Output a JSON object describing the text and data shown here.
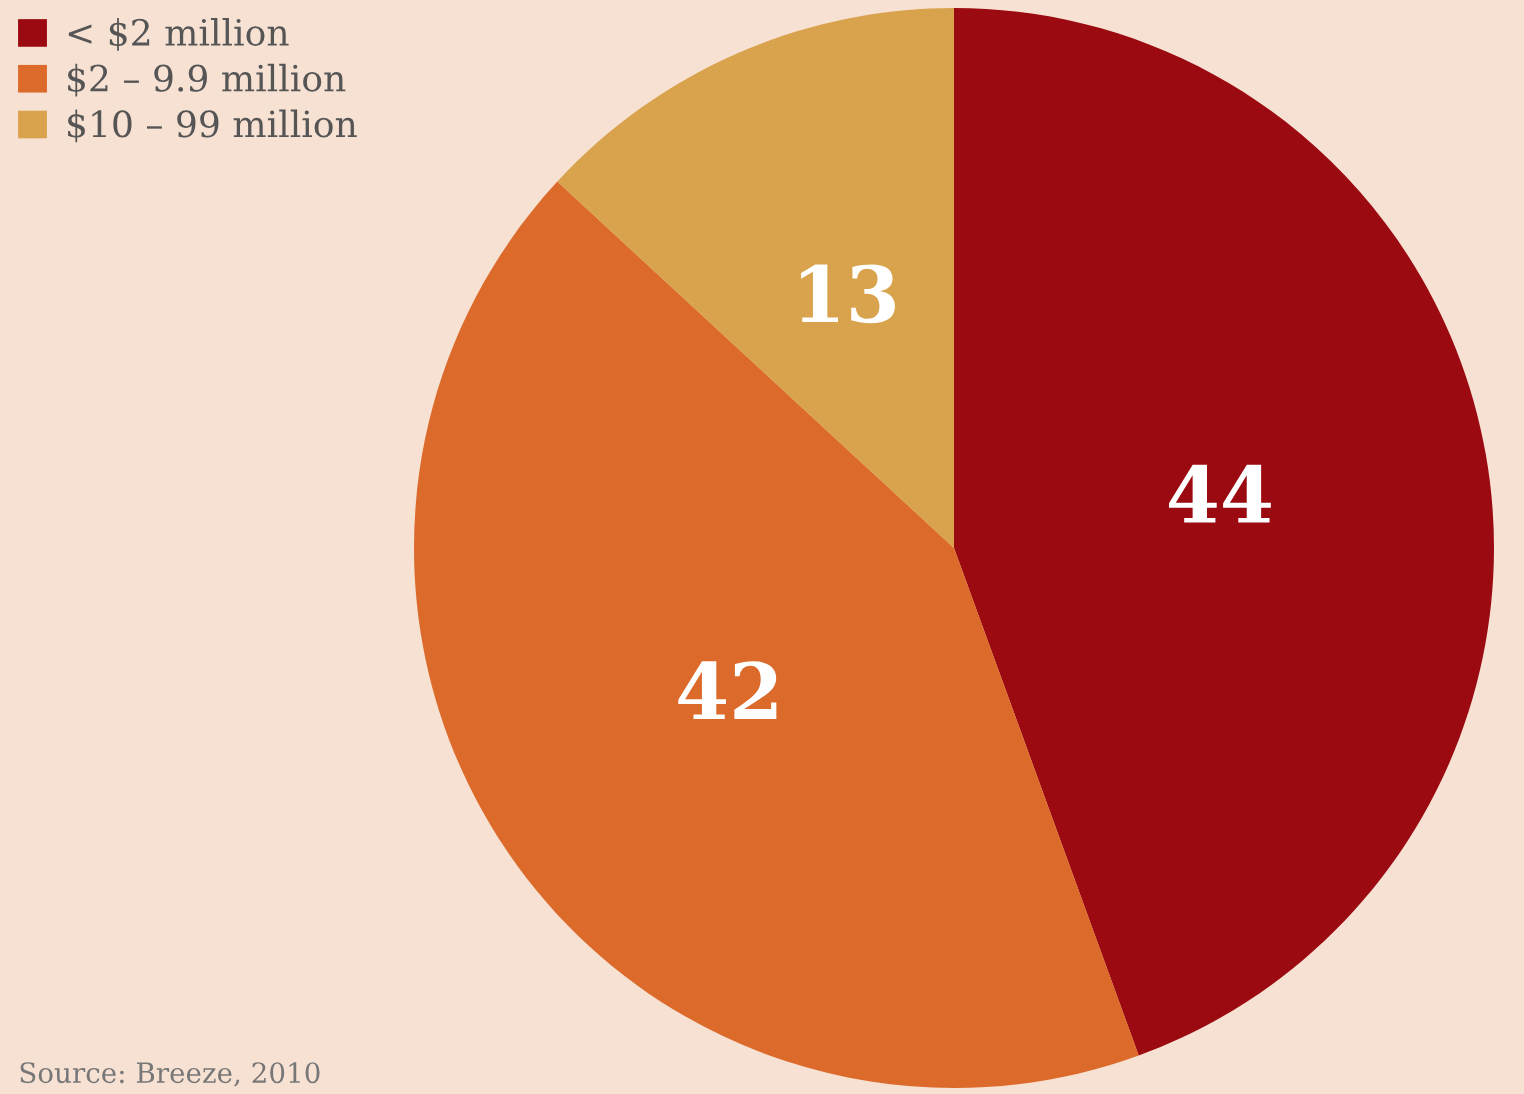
{
  "chart_data": {
    "type": "pie",
    "categories": [
      "< $2 million",
      "$2 – 9.9 million",
      "$10 – 99 million"
    ],
    "values": [
      44,
      42,
      13
    ],
    "colors": [
      "#9b0a10",
      "#dc6a2a",
      "#d9a34e"
    ],
    "data_labels": true,
    "legend": "top left",
    "annotations": [
      "Source: Breeze, 2010"
    ]
  }
}
